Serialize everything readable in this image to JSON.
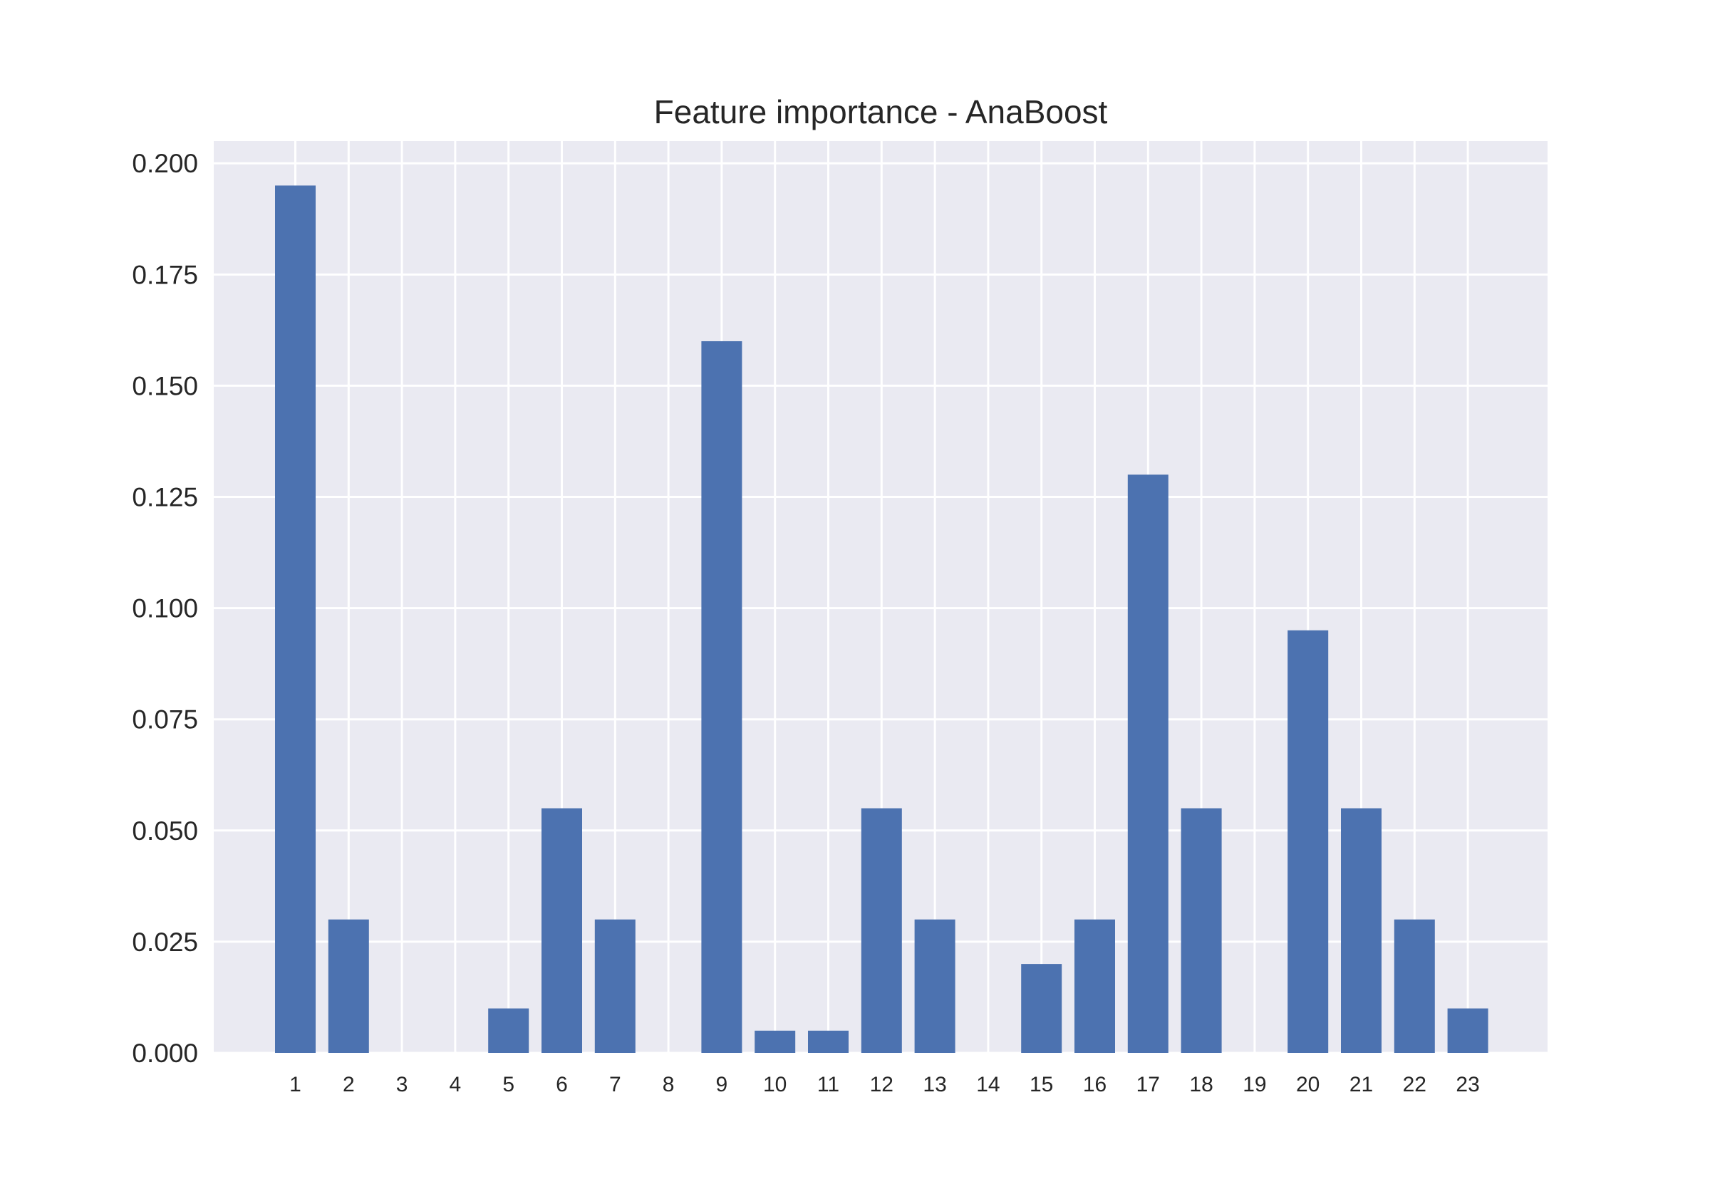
{
  "chart_data": {
    "type": "bar",
    "title": "Feature importance - AnaBoost",
    "xlabel": "",
    "ylabel": "",
    "categories": [
      "1",
      "2",
      "3",
      "4",
      "5",
      "6",
      "7",
      "8",
      "9",
      "10",
      "11",
      "12",
      "13",
      "14",
      "15",
      "16",
      "17",
      "18",
      "19",
      "20",
      "21",
      "22",
      "23"
    ],
    "values": [
      0.195,
      0.03,
      0.0,
      0.0,
      0.01,
      0.055,
      0.03,
      0.0,
      0.16,
      0.005,
      0.005,
      0.055,
      0.03,
      0.0,
      0.02,
      0.03,
      0.13,
      0.055,
      0.0,
      0.095,
      0.055,
      0.03,
      0.01
    ],
    "ylim": [
      0,
      0.205
    ],
    "yticks": [
      "0.000",
      "0.025",
      "0.050",
      "0.075",
      "0.100",
      "0.125",
      "0.150",
      "0.175",
      "0.200"
    ],
    "grid": true,
    "legend": "none",
    "colors": {
      "bar": "#4c72b0",
      "plot_background": "#eaeaf2",
      "grid": "#ffffff",
      "text": "#262626"
    }
  }
}
